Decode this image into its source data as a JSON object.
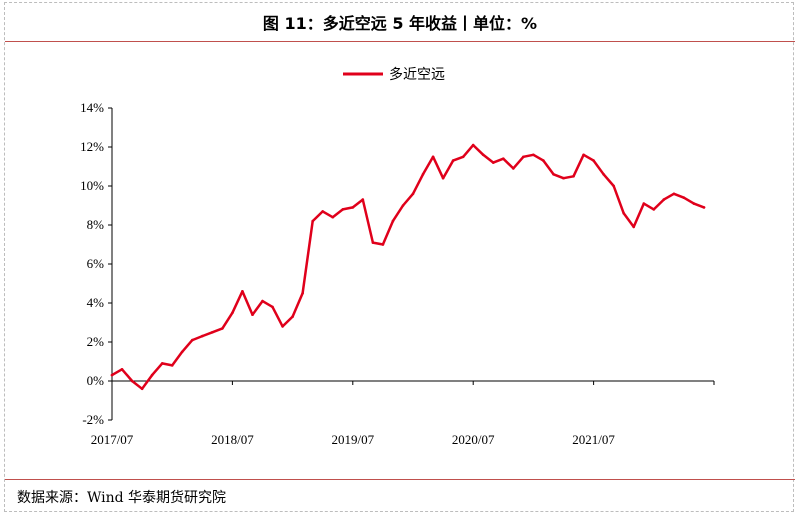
{
  "figure": {
    "title": "图 11：多近空远 5 年收益丨单位：%",
    "source": "数据来源：Wind  华泰期货研究院"
  },
  "colors": {
    "series": "#e0001b",
    "rule": "#c0504d",
    "axis": "#000000"
  },
  "chart_data": {
    "type": "line",
    "title": "",
    "xlabel": "",
    "ylabel": "",
    "ylim": [
      -2,
      14
    ],
    "yticks": [
      -2,
      0,
      2,
      4,
      6,
      8,
      10,
      12,
      14
    ],
    "ytick_labels": [
      "-2%",
      "0%",
      "2%",
      "4%",
      "6%",
      "8%",
      "10%",
      "12%",
      "14%"
    ],
    "xlim": [
      "2017-07",
      "2022-07"
    ],
    "xtick_labels": [
      "2017/07",
      "2018/07",
      "2019/07",
      "2020/07",
      "2021/07"
    ],
    "xticks": [
      "2017-07",
      "2018-07",
      "2019-07",
      "2020-07",
      "2021-07",
      "2022-07"
    ],
    "grid": false,
    "legend_position": "top-center",
    "series": [
      {
        "name": "多近空远",
        "x": [
          "2017-07",
          "2017-08",
          "2017-09",
          "2017-10",
          "2017-11",
          "2017-12",
          "2018-01",
          "2018-02",
          "2018-03",
          "2018-04",
          "2018-05",
          "2018-06",
          "2018-07",
          "2018-08",
          "2018-09",
          "2018-10",
          "2018-11",
          "2018-12",
          "2019-01",
          "2019-02",
          "2019-03",
          "2019-04",
          "2019-05",
          "2019-06",
          "2019-07",
          "2019-08",
          "2019-09",
          "2019-10",
          "2019-11",
          "2019-12",
          "2020-01",
          "2020-02",
          "2020-03",
          "2020-04",
          "2020-05",
          "2020-06",
          "2020-07",
          "2020-08",
          "2020-09",
          "2020-10",
          "2020-11",
          "2020-12",
          "2021-01",
          "2021-02",
          "2021-03",
          "2021-04",
          "2021-05",
          "2021-06",
          "2021-07",
          "2021-08",
          "2021-09",
          "2021-10",
          "2021-11",
          "2021-12",
          "2022-01",
          "2022-02",
          "2022-03",
          "2022-04",
          "2022-05",
          "2022-06"
        ],
        "values": [
          0.3,
          0.6,
          0.0,
          -0.4,
          0.3,
          0.9,
          0.8,
          1.5,
          2.1,
          2.3,
          2.5,
          2.7,
          3.5,
          4.6,
          3.4,
          4.1,
          3.8,
          2.8,
          3.3,
          4.5,
          8.2,
          8.7,
          8.4,
          8.8,
          8.9,
          9.3,
          7.1,
          7.0,
          8.2,
          9.0,
          9.6,
          10.6,
          11.5,
          10.4,
          11.3,
          11.5,
          12.1,
          11.6,
          11.2,
          11.4,
          10.9,
          11.5,
          11.6,
          11.3,
          10.6,
          10.4,
          10.5,
          11.6,
          11.3,
          10.6,
          10.0,
          8.6,
          7.9,
          9.1,
          8.8,
          9.3,
          9.6,
          9.4,
          9.1,
          8.9
        ]
      }
    ]
  }
}
